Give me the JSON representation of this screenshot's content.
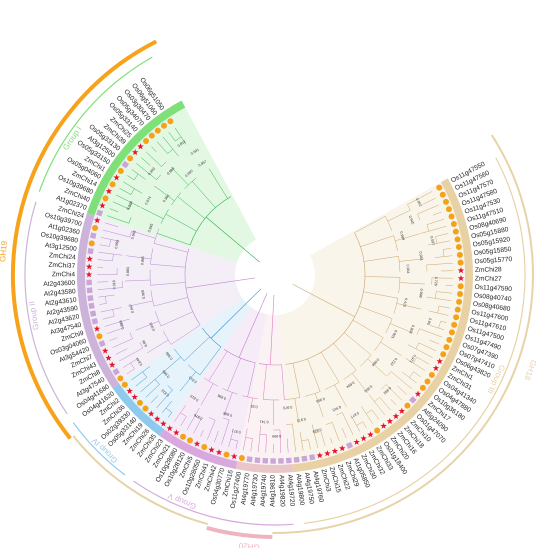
{
  "families": [
    {
      "label": "GH18",
      "color": "#e7d3a8"
    },
    {
      "label": "GH19",
      "color": "#f7a21b"
    },
    {
      "label": "GH20",
      "color": "#f0b3c0"
    }
  ],
  "groups": [
    {
      "label": "Group III",
      "color": "#e8d2a5"
    },
    {
      "label": "Group I",
      "color": "#7fe07a"
    },
    {
      "label": "Group II",
      "color": "#cdb3d9"
    },
    {
      "label": "Group IV",
      "color": "#8ec9ee"
    },
    {
      "label": "Group V",
      "color": "#d8a8df"
    }
  ],
  "marker_legend": {
    "star": "#e8132a",
    "square": "#caa5d8",
    "circle": "#f3a21a"
  },
  "leaves": [
    {
      "label": "Os11g47550",
      "marker": "circle"
    },
    {
      "label": "Os11g47560",
      "marker": "circle"
    },
    {
      "label": "Os11g47570",
      "marker": "circle"
    },
    {
      "label": "Os11g47580",
      "marker": "circle"
    },
    {
      "label": "Os11g47530",
      "marker": "circle"
    },
    {
      "label": "Os11g47510",
      "marker": "circle"
    },
    {
      "label": "Os08g40690",
      "marker": "circle"
    },
    {
      "label": "Os05g15880",
      "marker": "circle"
    },
    {
      "label": "Os05g15920",
      "marker": "circle"
    },
    {
      "label": "Os05g15850",
      "marker": "circle"
    },
    {
      "label": "Os05g15770",
      "marker": "circle"
    },
    {
      "label": "ZmChi28",
      "marker": "star"
    },
    {
      "label": "ZmChi27",
      "marker": "star"
    },
    {
      "label": "Os11g47590",
      "marker": "circle"
    },
    {
      "label": "Os08g40740",
      "marker": "circle"
    },
    {
      "label": "Os08g40680",
      "marker": "circle"
    },
    {
      "label": "Os11g47600",
      "marker": "circle"
    },
    {
      "label": "Os11g47610",
      "marker": "circle"
    },
    {
      "label": "Os11g47500",
      "marker": "circle"
    },
    {
      "label": "Os11g47490",
      "marker": "circle"
    },
    {
      "label": "Os07g47390",
      "marker": "circle"
    },
    {
      "label": "Os07g47410",
      "marker": "circle"
    },
    {
      "label": "Os06g43820",
      "marker": "circle"
    },
    {
      "label": "ZmChi1",
      "marker": "star"
    },
    {
      "label": "ZmChi31",
      "marker": "star"
    },
    {
      "label": "Os04g41340",
      "marker": "circle"
    },
    {
      "label": "Os04g47880",
      "marker": "circle"
    },
    {
      "label": "Os10g36180",
      "marker": "circle"
    },
    {
      "label": "ZmChi17",
      "marker": "star"
    },
    {
      "label": "At5g24090",
      "marker": "square"
    },
    {
      "label": "Os01g47070",
      "marker": "circle"
    },
    {
      "label": "ZmChi10",
      "marker": "star"
    },
    {
      "label": "ZmChi18",
      "marker": "star"
    },
    {
      "label": "ZmChi16",
      "marker": "star"
    },
    {
      "label": "ZmChi20",
      "marker": "star"
    },
    {
      "label": "Os01g18400",
      "marker": "circle"
    },
    {
      "label": "ZmChi33",
      "marker": "star"
    },
    {
      "label": "ZmChi32",
      "marker": "star"
    },
    {
      "label": "ZmChi30",
      "marker": "star"
    },
    {
      "label": "At1g05850",
      "marker": "square"
    },
    {
      "label": "ZmChi29",
      "marker": "star"
    },
    {
      "label": "ZmChi22",
      "marker": "star"
    },
    {
      "label": "ZmChi15",
      "marker": "star"
    },
    {
      "label": "ZmChi3",
      "marker": "star"
    },
    {
      "label": "At4g19760",
      "marker": "square"
    },
    {
      "label": "At4g19750",
      "marker": "square"
    },
    {
      "label": "At4g19800",
      "marker": "square"
    },
    {
      "label": "At4g19720",
      "marker": "square"
    },
    {
      "label": "At4g19820",
      "marker": "square"
    },
    {
      "label": "At4g19810",
      "marker": "square"
    },
    {
      "label": "At4g19740",
      "marker": "square"
    },
    {
      "label": "At4g19730",
      "marker": "square"
    },
    {
      "label": "At4g19770",
      "marker": "square"
    },
    {
      "label": "Os11g27400",
      "marker": "circle"
    },
    {
      "label": "ZmChi16",
      "marker": "star"
    },
    {
      "label": "Os04g30770",
      "marker": "circle"
    },
    {
      "label": "ZmChi42",
      "marker": "star"
    },
    {
      "label": "ZmChi41",
      "marker": "star"
    },
    {
      "label": "Os10g28050",
      "marker": "circle"
    },
    {
      "label": "ZmChi5",
      "marker": "star"
    },
    {
      "label": "Os10g28120",
      "marker": "circle"
    },
    {
      "label": "Os10g28080",
      "marker": "circle"
    },
    {
      "label": "ZmChi21",
      "marker": "star"
    },
    {
      "label": "ZmChi23",
      "marker": "star"
    },
    {
      "label": "ZmChi35",
      "marker": "star"
    },
    {
      "label": "ZmChi26",
      "marker": "star"
    },
    {
      "label": "ZmChi19",
      "marker": "star"
    },
    {
      "label": "Os05g33140",
      "marker": "circle"
    },
    {
      "label": "Os02g39330",
      "marker": "circle"
    },
    {
      "label": "ZmChi36",
      "marker": "star"
    },
    {
      "label": "ZmChi2",
      "marker": "star"
    },
    {
      "label": "Os04g41620",
      "marker": "circle"
    },
    {
      "label": "Os04g41680",
      "marker": "circle"
    },
    {
      "label": "At3g47540",
      "marker": "square"
    },
    {
      "label": "ZmChi8",
      "marker": "star"
    },
    {
      "label": "ZmChi43",
      "marker": "star"
    },
    {
      "label": "ZmChi7",
      "marker": "star"
    },
    {
      "label": "At3g54420",
      "marker": "square"
    },
    {
      "label": "Os03g04060",
      "marker": "circle"
    },
    {
      "label": "ZmChi9",
      "marker": "star"
    },
    {
      "label": "At3g47540",
      "marker": "square"
    },
    {
      "label": "At2g43620",
      "marker": "square"
    },
    {
      "label": "At2g43590",
      "marker": "square"
    },
    {
      "label": "At2g43610",
      "marker": "square"
    },
    {
      "label": "At2g43580",
      "marker": "square"
    },
    {
      "label": "At2g43600",
      "marker": "square"
    },
    {
      "label": "ZmChi4",
      "marker": "star"
    },
    {
      "label": "ZmChi37",
      "marker": "star"
    },
    {
      "label": "ZmChi24",
      "marker": "star"
    },
    {
      "label": "At3g12500",
      "marker": "square"
    },
    {
      "label": "Os10g39680",
      "marker": "circle"
    },
    {
      "label": "At1g02360",
      "marker": "square"
    },
    {
      "label": "Os10g39700",
      "marker": "circle"
    },
    {
      "label": "ZmChi24",
      "marker": "star"
    },
    {
      "label": "At1g02370",
      "marker": "square"
    },
    {
      "label": "ZmChi40",
      "marker": "star"
    },
    {
      "label": "Os10g39680",
      "marker": "circle"
    },
    {
      "label": "ZmChi14",
      "marker": "star"
    },
    {
      "label": "Os05g04060",
      "marker": "circle"
    },
    {
      "label": "ZmChi1",
      "marker": "star"
    },
    {
      "label": "Os05g33150",
      "marker": "circle"
    },
    {
      "label": "At3g12500",
      "marker": "square"
    },
    {
      "label": "Os05g33130",
      "marker": "circle"
    },
    {
      "label": "ZmChi39",
      "marker": "star"
    },
    {
      "label": "ZmChi25",
      "marker": "star"
    },
    {
      "label": "Os05g33140",
      "marker": "circle"
    },
    {
      "label": "Os05g34070",
      "marker": "circle"
    },
    {
      "label": "Os03g30470",
      "marker": "circle"
    },
    {
      "label": "Os06g51060",
      "marker": "circle"
    },
    {
      "label": "Os06g51050",
      "marker": "circle"
    }
  ],
  "bootstrap_labels": [
    "0.992",
    "0.945",
    "0.999",
    "0.597",
    "0.984",
    "0.964",
    "0.726",
    "0.998",
    "0.412",
    "0.95",
    "0.904",
    "0.651",
    "0.971",
    "0.222",
    "0.884",
    "0.992",
    "0.856",
    "0.894",
    "0.877",
    "0.915",
    "0.954",
    "0.828",
    "0.972",
    "0.973",
    "0.999",
    "0.741",
    "0.93",
    "0.971",
    "0.998",
    "0.996",
    "0.976",
    "0.819",
    "0.913",
    "0.823",
    "0.985",
    "0.999",
    "0.844",
    "0.96",
    "0.953",
    "0.889",
    "0.947",
    "0.965",
    "0.918",
    "0.883",
    "0.985",
    "0.995",
    "0.965",
    "0.845",
    "0.949",
    "0.974",
    "0.991",
    "0.993",
    "0.989",
    "0.995",
    "0.832",
    "0.941",
    "0.857"
  ]
}
